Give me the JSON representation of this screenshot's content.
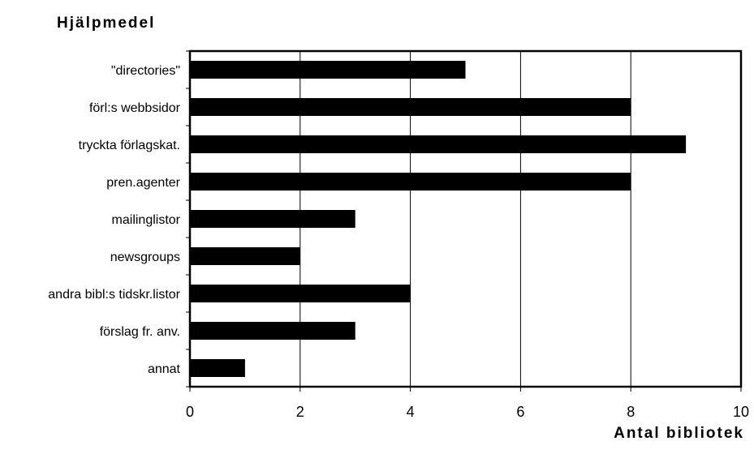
{
  "chart_data": {
    "type": "bar",
    "orientation": "horizontal",
    "ylabel": "Hjälpmedel",
    "xlabel": "Antal bibliotek",
    "categories": [
      "\"directories\"",
      "förl:s webbsidor",
      "tryckta förlagskat.",
      "pren.agenter",
      "mailinglistor",
      "newsgroups",
      "andra bibl:s tidskr.listor",
      "förslag fr. anv.",
      "annat"
    ],
    "values": [
      5,
      8,
      9,
      8,
      3,
      2,
      4,
      3,
      1
    ],
    "xlim": [
      0,
      10
    ],
    "xticks": [
      "0",
      "2",
      "4",
      "6",
      "8",
      "10"
    ],
    "grid": "vertical",
    "bar_color": "#000000"
  }
}
